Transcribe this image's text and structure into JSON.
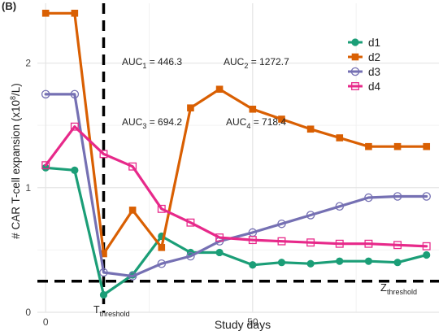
{
  "panel_label": "(B)",
  "colors": {
    "d1": "#1b9e77",
    "d2": "#d95f02",
    "d3": "#7570b3",
    "d4": "#e7298a",
    "grid_major": "#e4e4e4",
    "grid_minor": "#f2f2f2",
    "threshold": "#000000",
    "text": "#222222"
  },
  "annotations": {
    "auc1": {
      "base": "AUC",
      "sub": "1",
      "rest": " = 446.3"
    },
    "auc2": {
      "base": "AUC",
      "sub": "2",
      "rest": " = 1272.7"
    },
    "auc3": {
      "base": "AUC",
      "sub": "3",
      "rest": " = 694.2"
    },
    "auc4": {
      "base": "AUC",
      "sub": "4",
      "rest": " = 718.4"
    },
    "t_threshold": {
      "base": "T",
      "sub": "threshold"
    },
    "z_threshold": {
      "base": "Z",
      "sub": "threshold"
    }
  },
  "chart_data": {
    "type": "line",
    "xlabel": "Study days",
    "ylabel": {
      "base": "# CAR T-cell expansion (x10",
      "sup": "8",
      "rest": "/L)"
    },
    "xlim": [
      -2,
      95
    ],
    "ylim": [
      0,
      2.48
    ],
    "x_ticks": [
      0,
      50
    ],
    "y_ticks": [
      0,
      1,
      2
    ],
    "grid": true,
    "legend_position": "top-right",
    "t_threshold_x": 14,
    "z_threshold_y": 0.25,
    "series": [
      {
        "name": "d1",
        "marker": "circle-filled",
        "points": [
          [
            0,
            1.16
          ],
          [
            7,
            1.14
          ],
          [
            14,
            0.14
          ],
          [
            21,
            0.3
          ],
          [
            28,
            0.61
          ],
          [
            35,
            0.48
          ],
          [
            42,
            0.48
          ],
          [
            50,
            0.38
          ],
          [
            57,
            0.4
          ],
          [
            64,
            0.39
          ],
          [
            71,
            0.41
          ],
          [
            78,
            0.41
          ],
          [
            85,
            0.4
          ],
          [
            92,
            0.46
          ]
        ]
      },
      {
        "name": "d2",
        "marker": "square-filled",
        "points": [
          [
            0,
            2.4
          ],
          [
            7,
            2.4
          ],
          [
            14,
            0.47
          ],
          [
            21,
            0.82
          ],
          [
            28,
            0.52
          ],
          [
            35,
            1.64
          ],
          [
            42,
            1.79
          ],
          [
            50,
            1.63
          ],
          [
            57,
            1.55
          ],
          [
            64,
            1.47
          ],
          [
            71,
            1.4
          ],
          [
            78,
            1.33
          ],
          [
            85,
            1.33
          ],
          [
            92,
            1.33
          ]
        ]
      },
      {
        "name": "d3",
        "marker": "circle-open",
        "points": [
          [
            0,
            1.75
          ],
          [
            7,
            1.75
          ],
          [
            14,
            0.32
          ],
          [
            21,
            0.29
          ],
          [
            28,
            0.39
          ],
          [
            35,
            0.45
          ],
          [
            42,
            0.57
          ],
          [
            50,
            0.64
          ],
          [
            57,
            0.71
          ],
          [
            64,
            0.78
          ],
          [
            71,
            0.85
          ],
          [
            78,
            0.92
          ],
          [
            85,
            0.93
          ],
          [
            92,
            0.93
          ]
        ]
      },
      {
        "name": "d4",
        "marker": "square-open",
        "points": [
          [
            0,
            1.18
          ],
          [
            7,
            1.49
          ],
          [
            14,
            1.27
          ],
          [
            21,
            1.17
          ],
          [
            28,
            0.83
          ],
          [
            35,
            0.72
          ],
          [
            42,
            0.6
          ],
          [
            50,
            0.58
          ],
          [
            57,
            0.57
          ],
          [
            64,
            0.56
          ],
          [
            71,
            0.55
          ],
          [
            78,
            0.55
          ],
          [
            85,
            0.54
          ],
          [
            92,
            0.53
          ]
        ]
      }
    ]
  }
}
